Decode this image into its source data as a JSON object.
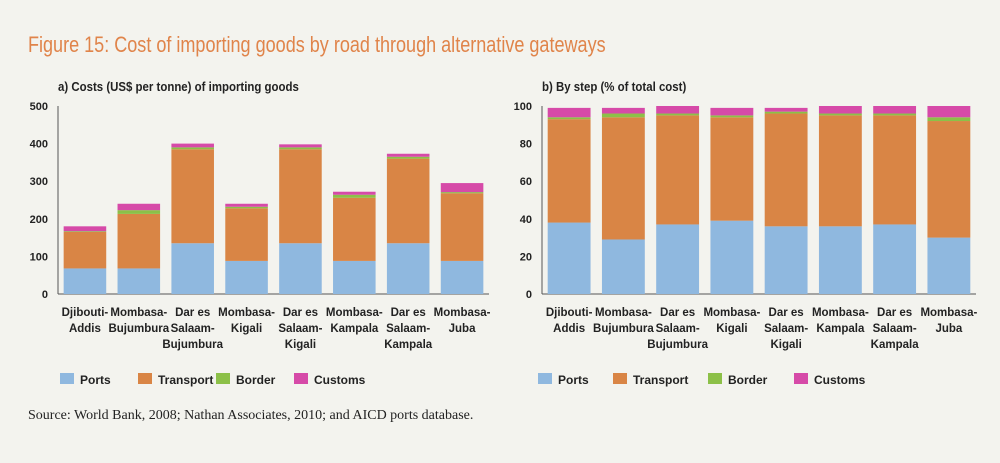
{
  "figure_title": "Figure 15: Cost of importing goods by road through alternative gateways",
  "source": "Source: World Bank, 2008; Nathan Associates, 2010; and AICD ports database.",
  "colors": {
    "ports": "#8fb8df",
    "transport": "#d98545",
    "border": "#8cc048",
    "customs": "#d64aa8",
    "title": "#e0844a"
  },
  "chart_data": [
    {
      "type": "bar",
      "stacked": true,
      "title": "a) Costs (US$ per tonne) of importing goods",
      "xlabel": "",
      "ylabel": "",
      "ylim": [
        0,
        500
      ],
      "yticks": [
        0,
        100,
        200,
        300,
        400,
        500
      ],
      "grid": false,
      "legend_position": "bottom",
      "categories": [
        [
          "Djibouti-",
          "Addis"
        ],
        [
          "Mombasa-",
          "Bujumbura"
        ],
        [
          "Dar es",
          "Salaam-",
          "Bujumbura"
        ],
        [
          "Mombasa-",
          "Kigali"
        ],
        [
          "Dar es",
          "Salaam-",
          "Kigali"
        ],
        [
          "Mombasa-",
          "Kampala"
        ],
        [
          "Dar es",
          "Salaam-",
          "Kampala"
        ],
        [
          "Mombasa-",
          "Juba"
        ]
      ],
      "series": [
        {
          "name": "Ports",
          "color_key": "ports",
          "values": [
            68,
            68,
            135,
            88,
            135,
            88,
            135,
            88
          ]
        },
        {
          "name": "Transport",
          "color_key": "transport",
          "values": [
            97,
            145,
            250,
            140,
            250,
            168,
            225,
            180
          ]
        },
        {
          "name": "Border",
          "color_key": "border",
          "values": [
            2,
            10,
            5,
            4,
            5,
            8,
            5,
            3
          ]
        },
        {
          "name": "Customs",
          "color_key": "customs",
          "values": [
            13,
            17,
            10,
            8,
            8,
            8,
            8,
            24
          ]
        }
      ]
    },
    {
      "type": "bar",
      "stacked": true,
      "title": "b) By step (% of total cost)",
      "xlabel": "",
      "ylabel": "",
      "ylim": [
        0,
        100
      ],
      "yticks": [
        0,
        20,
        40,
        60,
        80,
        100
      ],
      "grid": false,
      "legend_position": "bottom",
      "categories": [
        [
          "Djibouti-",
          "Addis"
        ],
        [
          "Mombasa-",
          "Bujumbura"
        ],
        [
          "Dar es",
          "Salaam-",
          "Bujumbura"
        ],
        [
          "Mombasa-",
          "Kigali"
        ],
        [
          "Dar es",
          "Salaam-",
          "Kigali"
        ],
        [
          "Mombasa-",
          "Kampala"
        ],
        [
          "Dar es",
          "Salaam-",
          "Kampala"
        ],
        [
          "Mombasa-",
          "Juba"
        ]
      ],
      "series": [
        {
          "name": "Ports",
          "color_key": "ports",
          "values": [
            38,
            29,
            37,
            39,
            36,
            36,
            37,
            30
          ]
        },
        {
          "name": "Transport",
          "color_key": "transport",
          "values": [
            55,
            65,
            58,
            55,
            60,
            59,
            58,
            62
          ]
        },
        {
          "name": "Border",
          "color_key": "border",
          "values": [
            1,
            2,
            1,
            1,
            1,
            1,
            1,
            2
          ]
        },
        {
          "name": "Customs",
          "color_key": "customs",
          "values": [
            5,
            3,
            4,
            4,
            2,
            4,
            4,
            6
          ]
        }
      ]
    }
  ]
}
